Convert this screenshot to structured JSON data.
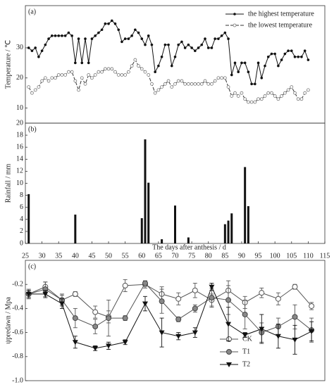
{
  "chart_data": [
    {
      "type": "line",
      "label": "(a)",
      "ylabel": "Temperature / ℃",
      "x": [
        26,
        27,
        28,
        29,
        30,
        31,
        32,
        33,
        34,
        35,
        36,
        37,
        38,
        39,
        40,
        41,
        42,
        43,
        44,
        45,
        46,
        47,
        48,
        49,
        50,
        51,
        52,
        53,
        54,
        55,
        56,
        57,
        58,
        59,
        60,
        61,
        62,
        63,
        64,
        65,
        66,
        67,
        68,
        69,
        70,
        71,
        72,
        73,
        74,
        75,
        76,
        77,
        78,
        79,
        80,
        81,
        82,
        83,
        84,
        85,
        86,
        87,
        88,
        89,
        90,
        91,
        92,
        93,
        94,
        95,
        96,
        97,
        98,
        99,
        100,
        101,
        102,
        103,
        104,
        105,
        106,
        107,
        108,
        109,
        110
      ],
      "xlim": [
        25,
        115
      ],
      "ylim": [
        5,
        44
      ],
      "yticks": [
        10,
        20,
        30
      ],
      "legend": "top-right",
      "series": [
        {
          "name": "the highest temperature",
          "color": "#111111",
          "marker": "dot",
          "dash": false,
          "values": [
            30,
            29,
            30,
            27,
            29,
            31,
            33,
            34,
            34,
            34,
            34,
            34,
            35,
            34,
            25,
            33,
            25,
            33,
            25,
            33,
            34,
            35,
            36,
            38,
            38,
            39,
            38,
            36,
            32,
            33,
            33,
            34,
            36,
            35,
            33,
            31,
            34,
            31,
            22,
            24,
            27,
            31,
            31,
            24,
            27,
            31,
            32,
            30,
            31,
            30,
            29,
            30,
            31,
            33,
            30,
            30,
            33,
            33,
            34,
            35,
            33,
            21,
            25,
            22,
            25,
            25,
            22,
            18,
            18,
            25,
            20,
            24,
            27,
            28,
            28,
            24,
            26,
            28,
            29,
            29,
            27,
            27,
            27,
            29,
            26
          ]
        },
        {
          "name": "the lowest temperature",
          "color": "#333333",
          "marker": "open",
          "dash": true,
          "values": [
            17,
            15,
            16,
            17,
            19,
            20,
            19,
            20,
            20,
            21,
            21,
            21,
            22,
            22,
            19,
            16,
            20,
            18,
            21,
            20,
            21,
            22,
            22,
            23,
            23,
            23,
            22,
            21,
            21,
            21,
            22,
            24,
            26,
            24,
            23,
            22,
            21,
            18,
            15,
            16,
            17,
            18,
            19,
            17,
            18,
            19,
            19,
            18,
            18,
            18,
            18,
            18,
            18,
            19,
            18,
            18,
            19,
            20,
            20,
            20,
            17,
            14,
            15,
            14,
            15,
            13,
            12,
            12,
            12,
            13,
            13,
            14,
            15,
            15,
            14,
            13,
            14,
            15,
            16,
            17,
            15,
            13,
            13,
            15,
            16
          ]
        }
      ]
    },
    {
      "type": "bar",
      "label": "(b)",
      "ylabel": "Rainfall / mm",
      "xlabel": "The days after anthesis / d",
      "x": [
        26,
        40,
        60,
        61,
        62,
        66,
        70,
        74,
        85,
        86,
        87,
        91,
        92
      ],
      "values": [
        8.2,
        4.8,
        4.2,
        17.3,
        10.1,
        0.7,
        6.3,
        1.0,
        3.2,
        3.8,
        5.0,
        12.7,
        6.2
      ],
      "color": "#111111",
      "xlim": [
        25,
        115
      ],
      "ylim": [
        0,
        20
      ],
      "xticks": [
        25,
        30,
        35,
        40,
        45,
        50,
        55,
        60,
        65,
        70,
        75,
        80,
        85,
        90,
        95,
        100,
        105,
        110,
        115
      ],
      "yticks": [
        0,
        2,
        4,
        6,
        8,
        10,
        12,
        14,
        16,
        18,
        20
      ]
    },
    {
      "type": "line",
      "label": "(c)",
      "ylabel": "ψpredawn / Mpa",
      "x": [
        26,
        31,
        36,
        40,
        46,
        50,
        55,
        61,
        66,
        71,
        76,
        81,
        86,
        91,
        96,
        101,
        106,
        111
      ],
      "xlim": [
        25,
        115
      ],
      "ylim": [
        -1,
        0
      ],
      "yticks": [
        -0.2,
        -0.4,
        -0.6,
        -0.8,
        {
          "value": -1,
          "label": "-1.0"
        }
      ],
      "legend": "bottom-right",
      "series": [
        {
          "name": "CK",
          "color": "#555555",
          "marker": "open-large",
          "values": [
            -0.28,
            -0.22,
            -0.33,
            -0.28,
            -0.43,
            -0.47,
            -0.21,
            -0.2,
            -0.28,
            -0.32,
            -0.25,
            -0.33,
            -0.25,
            -0.35,
            -0.27,
            -0.32,
            -0.22,
            -0.38
          ],
          "errors": [
            0.03,
            0.04,
            0.04,
            0.02,
            0.05,
            0.05,
            0.05,
            0.03,
            0.06,
            0.05,
            0.06,
            0.05,
            0.08,
            0.05,
            0.04,
            0.05,
            0.02,
            0.03
          ]
        },
        {
          "name": "T1",
          "color": "#555555",
          "marker": "gray",
          "values": [
            -0.28,
            -0.24,
            -0.33,
            -0.48,
            -0.55,
            -0.48,
            -0.48,
            -0.19,
            -0.34,
            -0.49,
            -0.4,
            -0.31,
            -0.33,
            -0.45,
            -0.6,
            -0.55,
            -0.47,
            -0.58
          ],
          "errors": [
            0.04,
            0.06,
            0.05,
            0.08,
            0.06,
            0.15,
            0.02,
            0.02,
            0.1,
            0.02,
            0.03,
            0.08,
            0.12,
            0.12,
            0.08,
            0.07,
            0.1,
            0.1
          ]
        },
        {
          "name": "T2",
          "color": "#111111",
          "marker": "triangle",
          "values": [
            -0.28,
            -0.28,
            -0.36,
            -0.68,
            -0.73,
            -0.71,
            -0.68,
            -0.36,
            -0.6,
            -0.63,
            -0.6,
            -0.22,
            -0.53,
            -0.62,
            -0.57,
            -0.63,
            -0.66,
            -0.59
          ],
          "errors": [
            0.03,
            0.03,
            0.04,
            0.05,
            0.02,
            0.03,
            0.02,
            0.06,
            0.12,
            0.03,
            0.04,
            0.03,
            0.14,
            0.02,
            0.12,
            0.1,
            0.12,
            0.08
          ]
        }
      ]
    }
  ]
}
